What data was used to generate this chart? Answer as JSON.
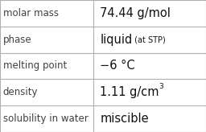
{
  "rows": [
    {
      "label": "molar mass",
      "value_parts": [
        {
          "text": "74.44 g/mol",
          "style": "normal"
        }
      ]
    },
    {
      "label": "phase",
      "value_parts": [
        {
          "text": "liquid",
          "style": "normal"
        },
        {
          "text": " (at STP)",
          "style": "small"
        }
      ]
    },
    {
      "label": "melting point",
      "value_parts": [
        {
          "text": "−6 °C",
          "style": "normal"
        }
      ]
    },
    {
      "label": "density",
      "value_parts": [
        {
          "text": "1.11 g/cm",
          "style": "normal"
        },
        {
          "text": "3",
          "style": "super"
        }
      ]
    },
    {
      "label": "solubility in water",
      "value_parts": [
        {
          "text": "miscible",
          "style": "normal"
        }
      ]
    }
  ],
  "bg_color": "#ffffff",
  "border_color": "#b0b0b0",
  "label_color": "#404040",
  "value_color": "#111111",
  "label_fontsize": 8.5,
  "value_fontsize": 10.5,
  "small_fontsize": 7.0,
  "col_split": 0.455,
  "fig_width": 2.56,
  "fig_height": 1.64,
  "dpi": 100
}
